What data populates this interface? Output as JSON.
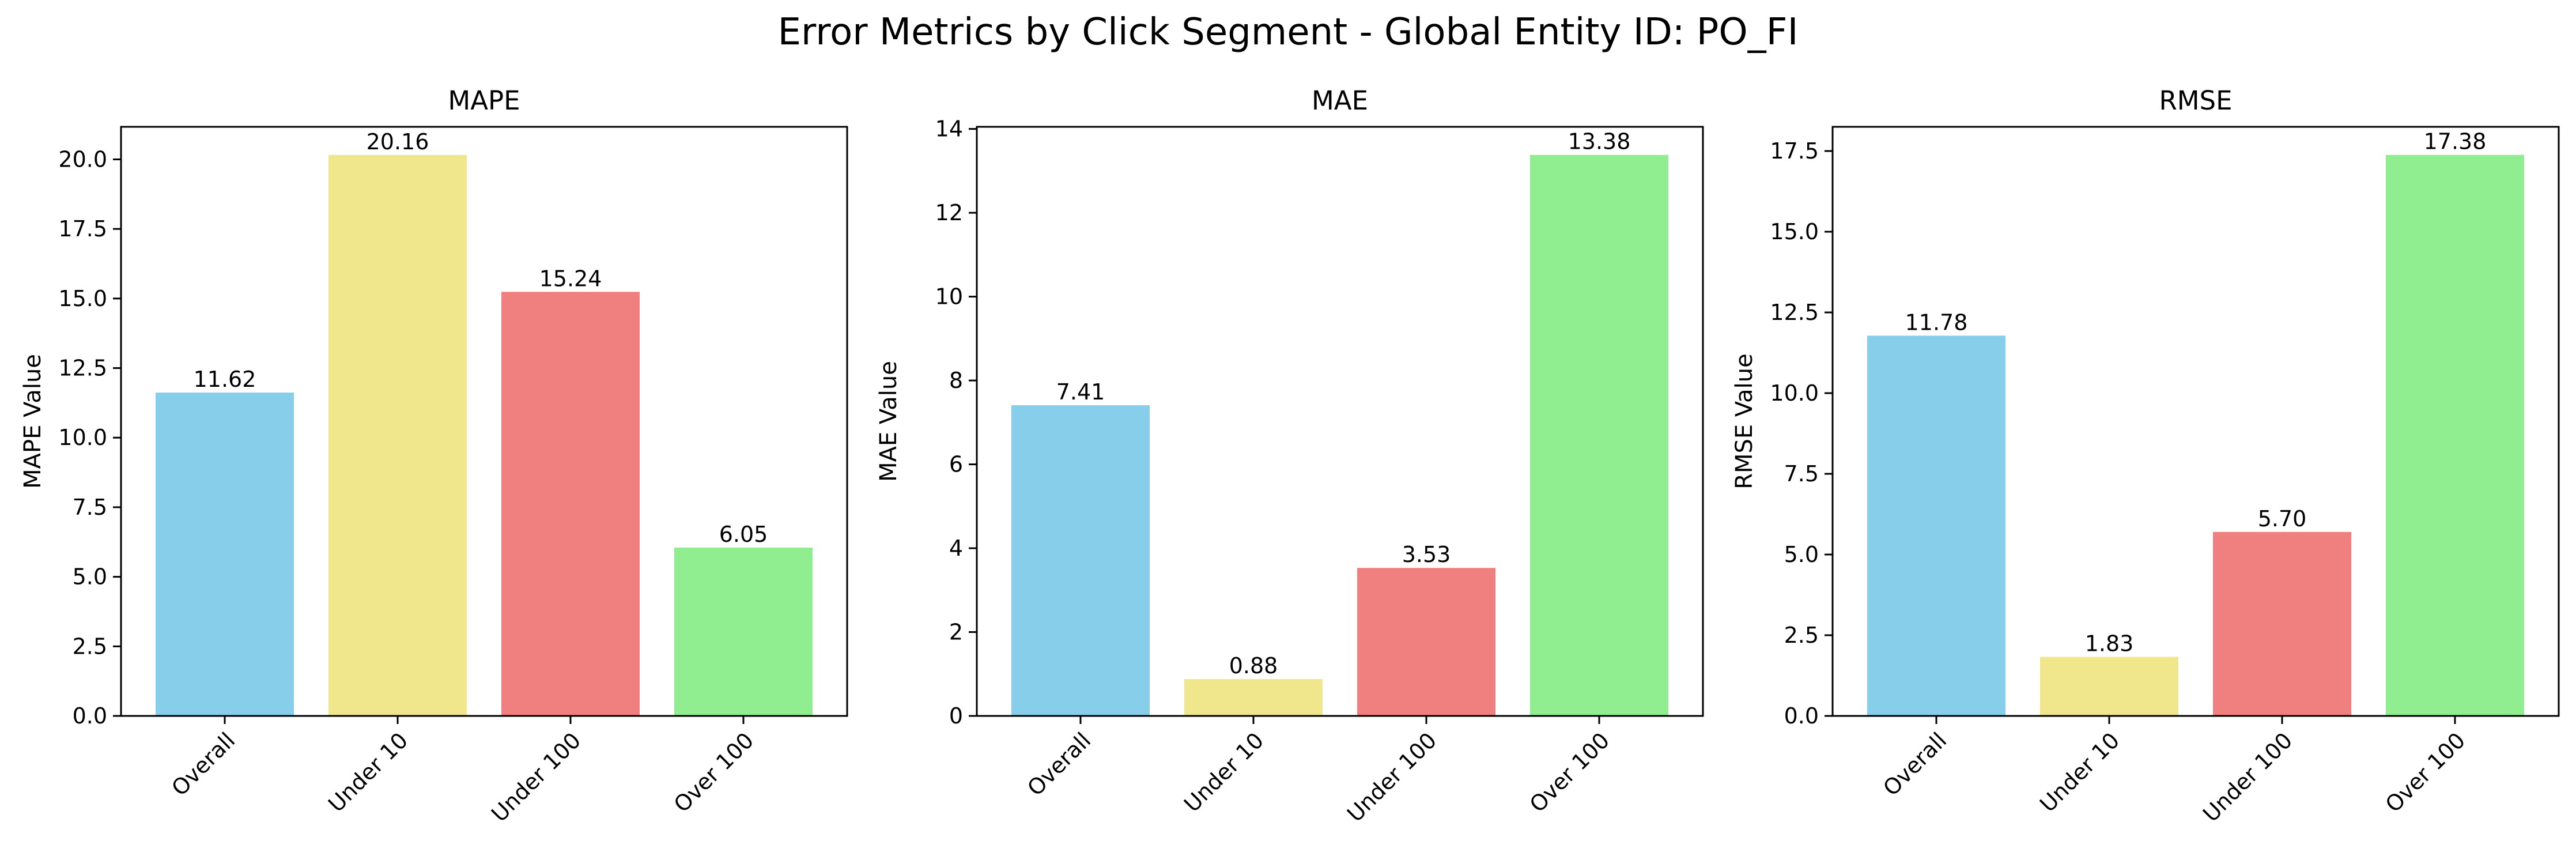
{
  "suptitle": "Error Metrics by Click Segment - Global Entity ID: PO_FI",
  "colors": {
    "Overall": "#87ceeb",
    "Under 10": "#f0e68c",
    "Under 100": "#f08080",
    "Over 100": "#90ee90"
  },
  "chart_data": [
    {
      "type": "bar",
      "title": "MAPE",
      "xlabel": "",
      "ylabel": "MAPE Value",
      "categories": [
        "Overall",
        "Under 10",
        "Under 100",
        "Over 100"
      ],
      "values": [
        11.62,
        20.16,
        15.24,
        6.05
      ],
      "value_labels": [
        "11.62",
        "20.16",
        "15.24",
        "6.05"
      ],
      "ylim": [
        0,
        21.17
      ],
      "yticks": [
        0,
        2.5,
        5,
        7.5,
        10,
        12.5,
        15,
        17.5,
        20
      ],
      "ytick_labels": [
        "0.0",
        "2.5",
        "5.0",
        "7.5",
        "10.0",
        "12.5",
        "15.0",
        "17.5",
        "20.0"
      ],
      "grid": false
    },
    {
      "type": "bar",
      "title": "MAE",
      "xlabel": "",
      "ylabel": "MAE Value",
      "categories": [
        "Overall",
        "Under 10",
        "Under 100",
        "Over 100"
      ],
      "values": [
        7.41,
        0.88,
        3.53,
        13.38
      ],
      "value_labels": [
        "7.41",
        "0.88",
        "3.53",
        "13.38"
      ],
      "ylim": [
        0,
        14.05
      ],
      "yticks": [
        0,
        2,
        4,
        6,
        8,
        10,
        12,
        14
      ],
      "ytick_labels": [
        "0",
        "2",
        "4",
        "6",
        "8",
        "10",
        "12",
        "14"
      ],
      "grid": false
    },
    {
      "type": "bar",
      "title": "RMSE",
      "xlabel": "",
      "ylabel": "RMSE Value",
      "categories": [
        "Overall",
        "Under 10",
        "Under 100",
        "Over 100"
      ],
      "values": [
        11.78,
        1.83,
        5.7,
        17.38
      ],
      "value_labels": [
        "11.78",
        "1.83",
        "5.70",
        "17.38"
      ],
      "ylim": [
        0,
        18.25
      ],
      "yticks": [
        0,
        2.5,
        5,
        7.5,
        10,
        12.5,
        15,
        17.5
      ],
      "ytick_labels": [
        "0.0",
        "2.5",
        "5.0",
        "7.5",
        "10.0",
        "12.5",
        "15.0",
        "17.5"
      ],
      "grid": false
    }
  ]
}
